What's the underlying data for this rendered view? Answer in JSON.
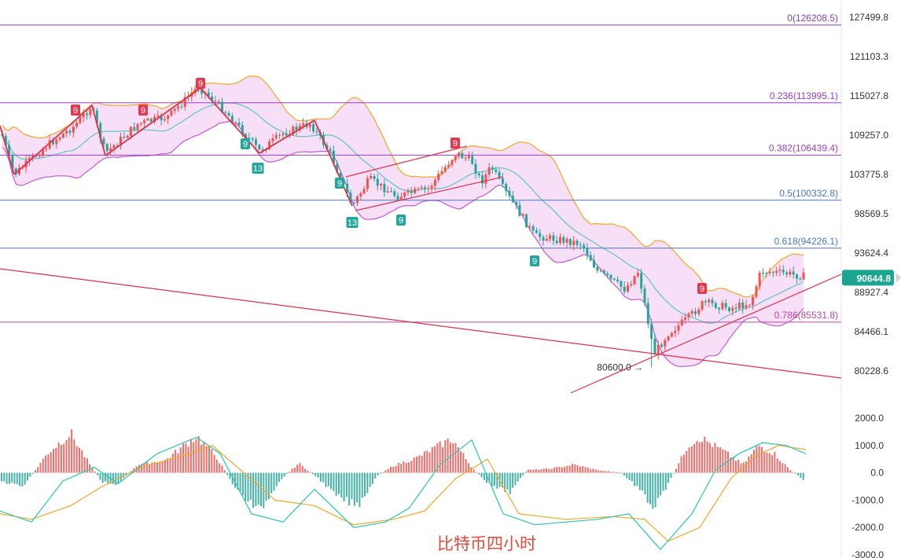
{
  "chart_data": [
    {
      "type": "candlestick",
      "title": "",
      "y_axis": {
        "ticks": [
          "127499.8",
          "121103.3",
          "115027.8",
          "109257.0",
          "103775.8",
          "98569.5",
          "93624.4",
          "88927.4",
          "84466.1",
          "80228.6"
        ]
      },
      "current_price": "90644.8",
      "fibonacci_levels": [
        {
          "label": "0(126208.5)",
          "value": 126208.5,
          "color": "#7e3fc6"
        },
        {
          "label": "0.236(113995.1)",
          "value": 113995.1,
          "color": "#9b3fc6"
        },
        {
          "label": "0.382(106439.4)",
          "value": 106439.4,
          "color": "#9b3fc6"
        },
        {
          "label": "0.5(100332.8)",
          "value": 100332.8,
          "color": "#4a74c9"
        },
        {
          "label": "0.618(94226.1)",
          "value": 94226.1,
          "color": "#4a74c9"
        },
        {
          "label": "0.786(85531.8)",
          "value": 85531.8,
          "color": "#c6479a"
        }
      ],
      "low_annotation": "80600.0",
      "td_markers": [
        {
          "text": "9",
          "kind": "sell"
        },
        {
          "text": "9",
          "kind": "sell"
        },
        {
          "text": "9",
          "kind": "sell"
        },
        {
          "text": "9",
          "kind": "sell"
        },
        {
          "text": "9",
          "kind": "sell"
        },
        {
          "text": "13",
          "kind": "buy"
        },
        {
          "text": "13",
          "kind": "buy"
        },
        {
          "text": "9",
          "kind": "buy"
        },
        {
          "text": "9",
          "kind": "buy"
        },
        {
          "text": "9",
          "kind": "buy"
        },
        {
          "text": "9",
          "kind": "buy"
        }
      ],
      "indicators": [
        "bollinger-bands"
      ],
      "colors": {
        "up": "#ef5350",
        "down": "#26a69a",
        "band_fill": "#f3d4f4",
        "band_upper": "#f5a623",
        "band_mid": "#5ec4c4"
      }
    },
    {
      "type": "histogram",
      "indicator": "MACD",
      "y_axis": {
        "ticks": [
          "2000.0",
          "1000.0",
          "0.0",
          "-1000.0",
          "-2000.0",
          "-3000.0"
        ],
        "range": [
          -3000,
          2000
        ]
      },
      "colors": {
        "positive": "#ef5350",
        "negative": "#26a69a",
        "dif": "#26c6b6",
        "dea": "#f5a623"
      }
    }
  ],
  "caption": "比特币四小时"
}
